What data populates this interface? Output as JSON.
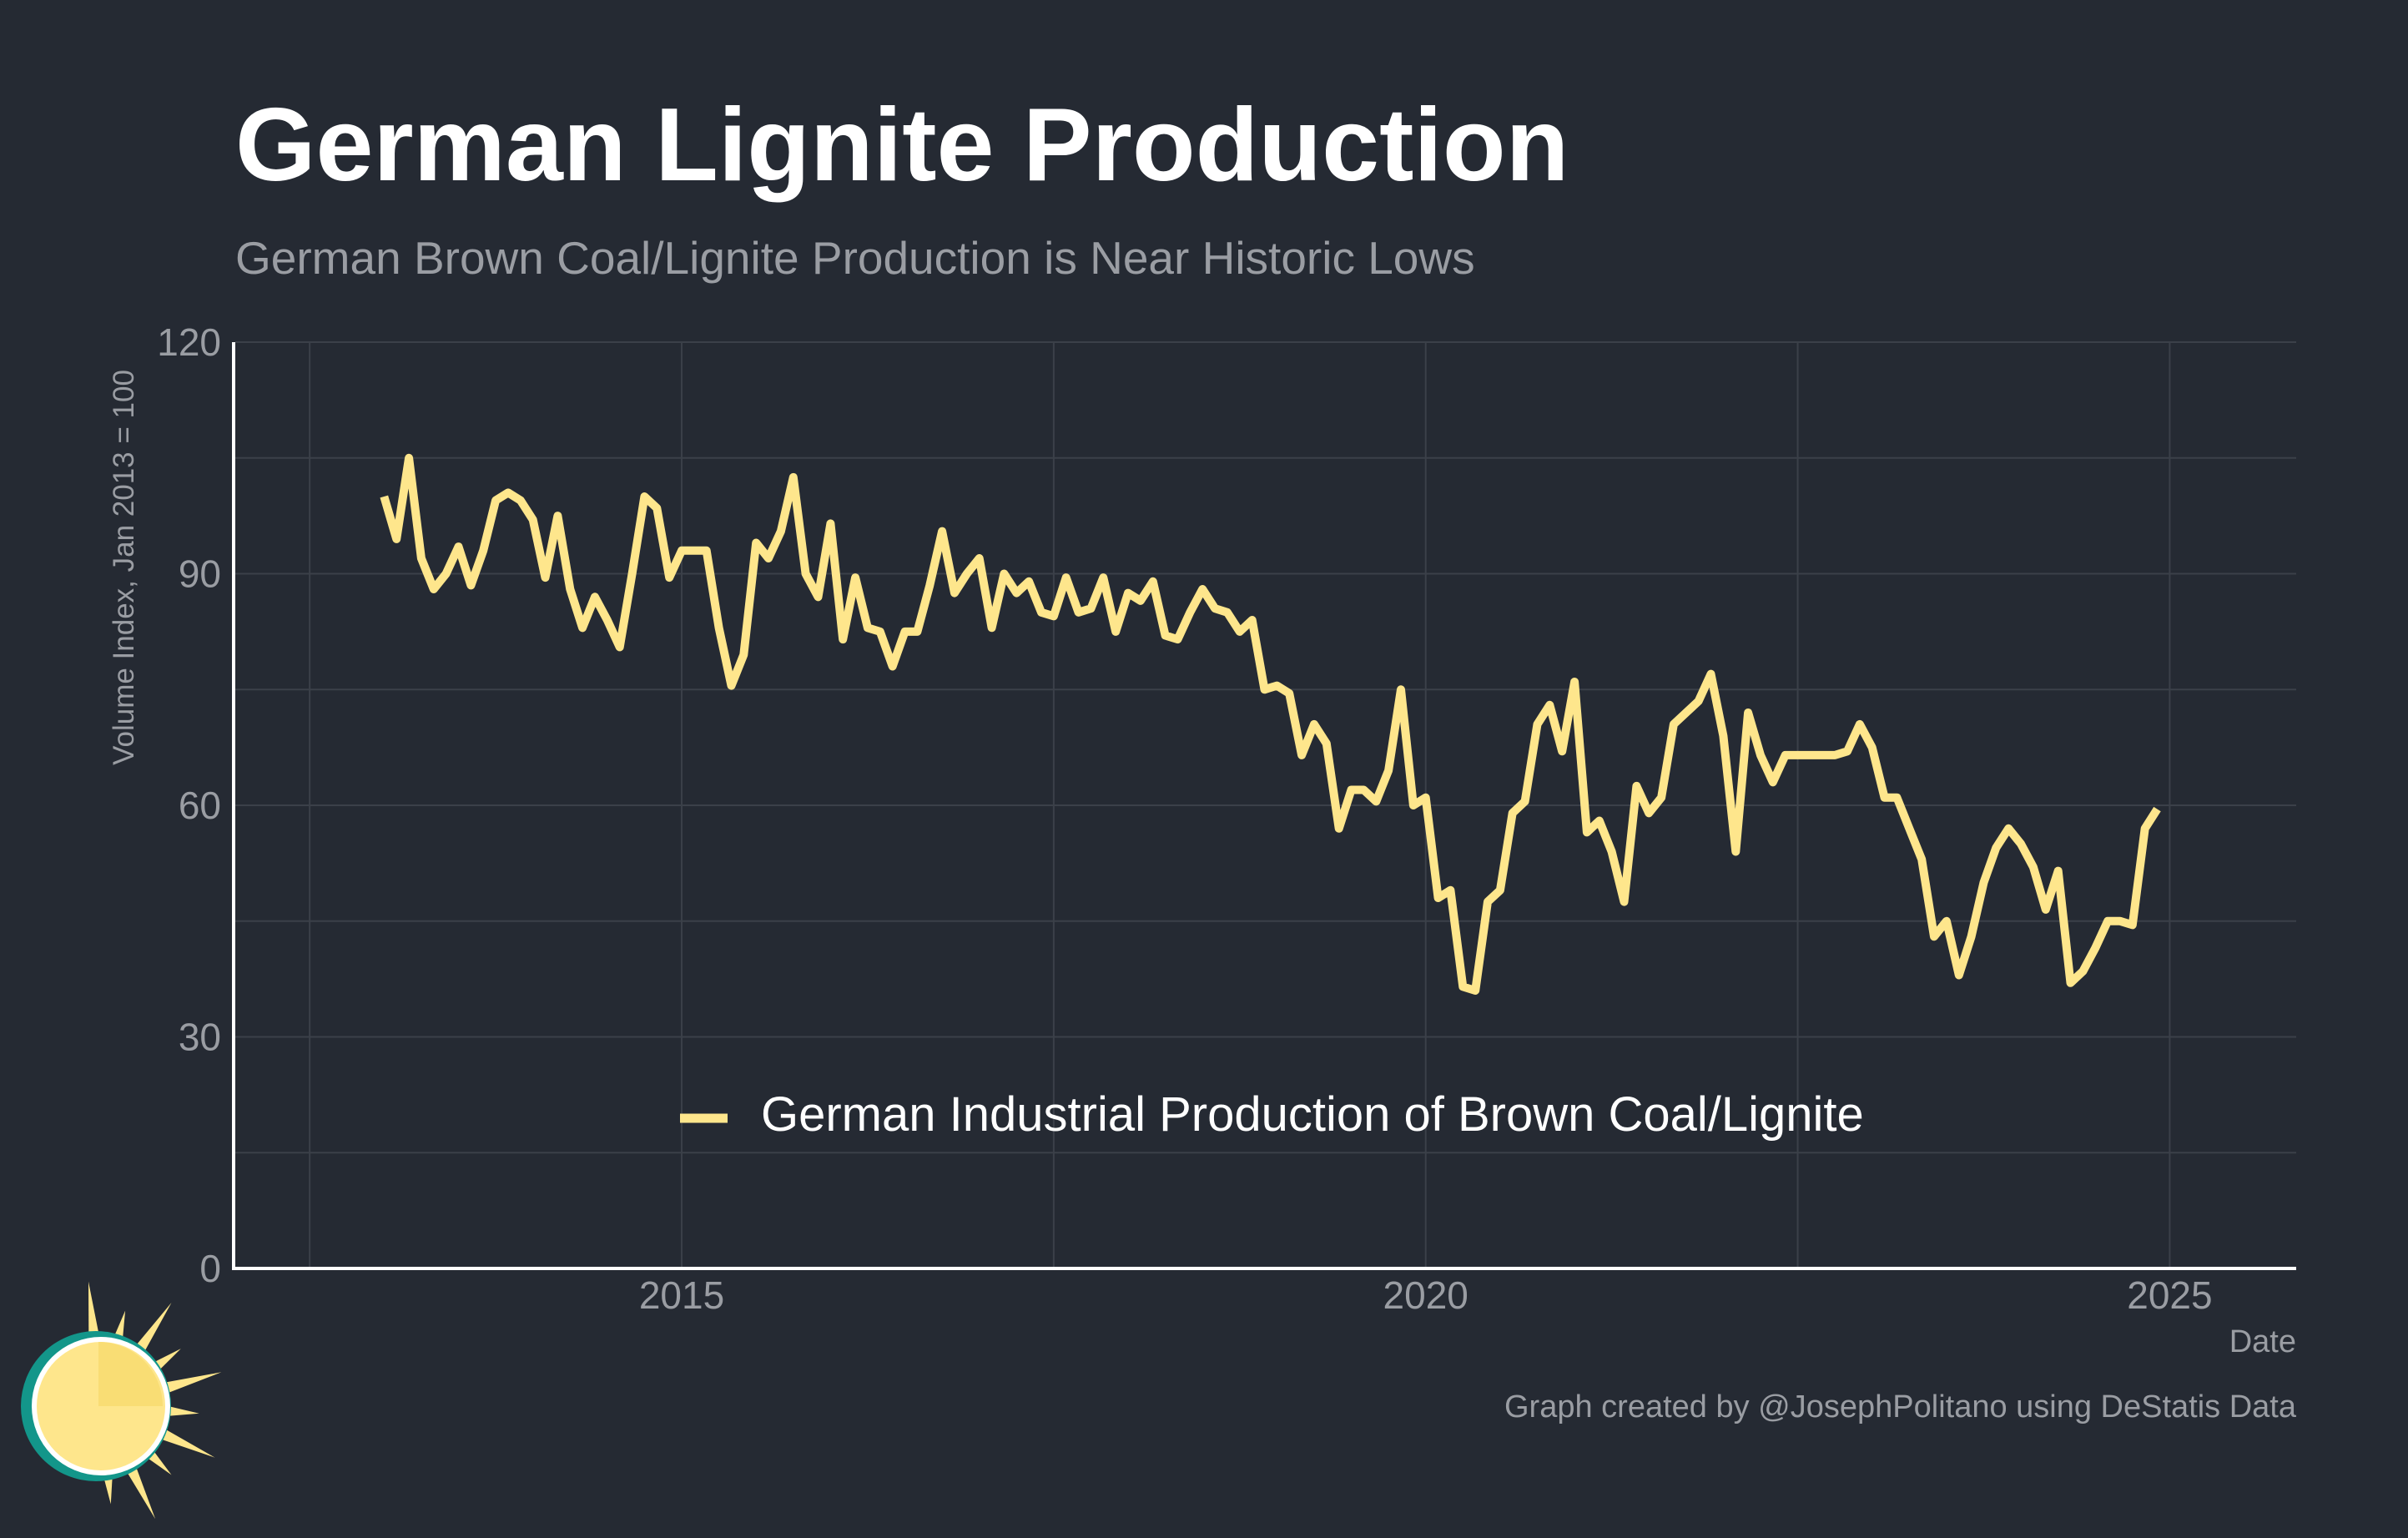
{
  "colors": {
    "background": "#252a33",
    "line": "#fee68c",
    "title": "#ffffff",
    "muted": "#9a9da3",
    "grid": "#3b4049",
    "axis": "#ffffff",
    "logo_ring": "#13968a",
    "logo_sun": "#fee68c"
  },
  "icons": {
    "logo": "sun-logo-icon"
  },
  "credit": "Graph created by @JosephPolitano using DeStatis Data",
  "chart_data": {
    "type": "line",
    "title": "German Lignite Production",
    "subtitle": "German Brown Coal/Lignite Production is Near Historic Lows",
    "xlabel": "Date",
    "ylabel": "Volume Index, Jan 2013 = 100",
    "xlim": [
      2012.0,
      2025.85
    ],
    "ylim": [
      0,
      120
    ],
    "x_ticks": [
      2015,
      2020,
      2025
    ],
    "y_ticks": [
      0,
      30,
      60,
      90,
      120
    ],
    "grid": true,
    "legend_position": "bottom-center",
    "x_start": "2013-01",
    "frequency": "monthly",
    "series": [
      {
        "name": "German Industrial Production of Brown Coal/Lignite",
        "values": [
          100,
          94.5,
          105,
          92,
          88,
          90,
          93.5,
          88.5,
          93,
          99.5,
          100.5,
          99.5,
          97,
          89.5,
          97.5,
          88,
          83,
          87,
          84,
          80.5,
          90,
          100,
          98.5,
          89.5,
          93,
          93,
          93,
          83,
          75.5,
          79.5,
          94,
          92,
          95.5,
          102.5,
          90,
          87,
          96.5,
          81.5,
          89.5,
          83,
          82.5,
          78,
          82.5,
          82.5,
          88.5,
          95.5,
          87.5,
          90,
          92,
          83,
          90,
          87.5,
          89,
          85,
          84.5,
          89.5,
          85,
          85.5,
          89.5,
          82.5,
          87.5,
          86.5,
          89,
          82,
          81.5,
          85,
          88,
          85.5,
          85,
          82.5,
          84,
          75,
          75.5,
          74.5,
          66.5,
          70.5,
          68,
          57,
          62,
          62,
          60.5,
          64.5,
          75,
          60,
          61,
          48,
          49,
          36.5,
          36,
          47.5,
          49,
          59,
          60.5,
          70.5,
          73,
          67,
          76,
          56.5,
          58,
          54,
          47.5,
          62.5,
          59,
          61,
          70.5,
          72,
          73.5,
          77,
          69,
          54,
          72,
          66.5,
          63,
          66.5,
          66.5,
          66.5,
          66.5,
          66.5,
          67,
          70.5,
          67.5,
          61,
          61,
          57,
          53,
          43,
          45,
          38,
          43,
          50,
          54.5,
          57,
          55,
          52,
          46.5,
          51.5,
          37,
          38.5,
          41.5,
          45,
          45,
          44.5,
          57,
          59.5
        ]
      }
    ]
  }
}
